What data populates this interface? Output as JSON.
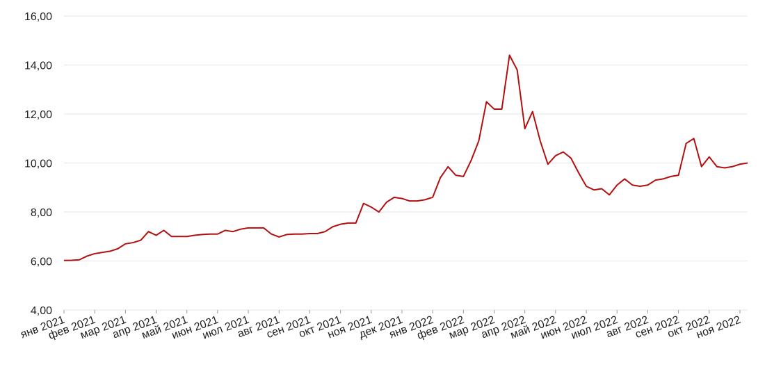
{
  "chart_data": {
    "type": "line",
    "color": "#b30f0f",
    "grid": true,
    "categories": [
      "янв 2021",
      null,
      null,
      null,
      "фев 2021",
      null,
      null,
      null,
      "мар 2021",
      null,
      null,
      null,
      "апр 2021",
      null,
      null,
      null,
      "май 2021",
      null,
      null,
      null,
      "июн 2021",
      null,
      null,
      null,
      "июл 2021",
      null,
      null,
      null,
      "авг 2021",
      null,
      null,
      null,
      "сен 2021",
      null,
      null,
      null,
      "окт 2021",
      null,
      null,
      null,
      "ноя 2021",
      null,
      null,
      null,
      "дек 2021",
      null,
      null,
      null,
      "янв 2022",
      null,
      null,
      null,
      "фев 2022",
      null,
      null,
      null,
      "мар 2022",
      null,
      null,
      null,
      "апр 2022",
      null,
      null,
      null,
      "май 2022",
      null,
      null,
      null,
      "июн 2022",
      null,
      null,
      null,
      "июл 2022",
      null,
      null,
      null,
      "авг 2022",
      null,
      null,
      null,
      "сен 2022",
      null,
      null,
      null,
      "окт 2022",
      null,
      null,
      null,
      "ноя 2022",
      null
    ],
    "values": [
      6.02,
      6.03,
      6.05,
      6.2,
      6.3,
      6.35,
      6.4,
      6.5,
      6.7,
      6.75,
      6.85,
      7.2,
      7.05,
      7.25,
      7.0,
      7.0,
      7.0,
      7.05,
      7.08,
      7.1,
      7.1,
      7.25,
      7.2,
      7.3,
      7.35,
      7.35,
      7.35,
      7.1,
      6.98,
      7.08,
      7.1,
      7.1,
      7.12,
      7.12,
      7.2,
      7.4,
      7.5,
      7.55,
      7.55,
      8.35,
      8.2,
      8.0,
      8.4,
      8.6,
      8.55,
      8.45,
      8.45,
      8.5,
      8.6,
      9.4,
      9.85,
      9.5,
      9.45,
      10.1,
      10.9,
      12.5,
      12.2,
      12.2,
      14.4,
      13.8,
      11.4,
      12.1,
      10.9,
      9.95,
      10.3,
      10.45,
      10.2,
      9.6,
      9.05,
      8.9,
      8.95,
      8.7,
      9.1,
      9.35,
      9.1,
      9.05,
      9.1,
      9.3,
      9.35,
      9.45,
      9.5,
      10.8,
      11.0,
      9.85,
      10.25,
      9.85,
      9.8,
      9.85,
      9.95,
      10.0
    ],
    "ylim": [
      4,
      16
    ],
    "yticks": [
      {
        "value": 4,
        "label": "4,00"
      },
      {
        "value": 6,
        "label": "6,00"
      },
      {
        "value": 8,
        "label": "8,00"
      },
      {
        "value": 10,
        "label": "10,00"
      },
      {
        "value": 12,
        "label": "12,00"
      },
      {
        "value": 14,
        "label": "14,00"
      },
      {
        "value": 16,
        "label": "16,00"
      }
    ]
  }
}
